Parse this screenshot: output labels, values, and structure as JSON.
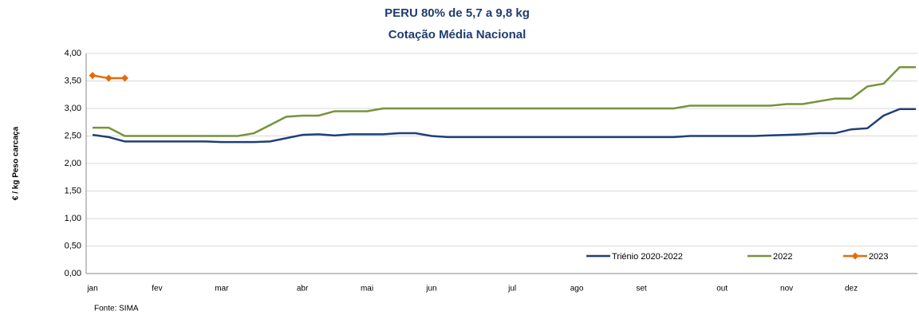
{
  "chart_data": {
    "type": "line",
    "title": "PERU 80% de 5,7 a 9,8 kg",
    "subtitle": "Cotação Média Nacional",
    "y_label": "€ / kg Peso carcaça",
    "source": "Fonte: SIMA",
    "categories": [
      "jan",
      null,
      null,
      null,
      "fev",
      null,
      null,
      null,
      "mar",
      null,
      null,
      null,
      null,
      "abr",
      null,
      null,
      null,
      "mai",
      null,
      null,
      null,
      "jun",
      null,
      null,
      null,
      null,
      "jul",
      null,
      null,
      null,
      "ago",
      null,
      null,
      null,
      "set",
      null,
      null,
      null,
      null,
      "out",
      null,
      null,
      null,
      "nov",
      null,
      null,
      null,
      "dez",
      null,
      null,
      null,
      null
    ],
    "series": [
      {
        "name": "Triénio 2020-2022",
        "color": "#203f77",
        "marker": false,
        "values": [
          2.52,
          2.48,
          2.4,
          2.4,
          2.4,
          2.4,
          2.4,
          2.4,
          2.39,
          2.39,
          2.39,
          2.4,
          2.46,
          2.52,
          2.53,
          2.51,
          2.53,
          2.53,
          2.53,
          2.55,
          2.55,
          2.5,
          2.48,
          2.48,
          2.48,
          2.48,
          2.48,
          2.48,
          2.48,
          2.48,
          2.48,
          2.48,
          2.48,
          2.48,
          2.48,
          2.48,
          2.48,
          2.5,
          2.5,
          2.5,
          2.5,
          2.5,
          2.51,
          2.52,
          2.53,
          2.55,
          2.55,
          2.62,
          2.64,
          2.87,
          2.99,
          2.99
        ]
      },
      {
        "name": "2022",
        "color": "#76933c",
        "marker": false,
        "values": [
          2.65,
          2.65,
          2.5,
          2.5,
          2.5,
          2.5,
          2.5,
          2.5,
          2.5,
          2.5,
          2.55,
          2.7,
          2.85,
          2.87,
          2.87,
          2.95,
          2.95,
          2.95,
          3.0,
          3.0,
          3.0,
          3.0,
          3.0,
          3.0,
          3.0,
          3.0,
          3.0,
          3.0,
          3.0,
          3.0,
          3.0,
          3.0,
          3.0,
          3.0,
          3.0,
          3.0,
          3.0,
          3.05,
          3.05,
          3.05,
          3.05,
          3.05,
          3.05,
          3.08,
          3.08,
          3.13,
          3.18,
          3.18,
          3.4,
          3.45,
          3.75,
          3.75
        ]
      },
      {
        "name": "2023",
        "color": "#e36c09",
        "marker": true,
        "values": [
          3.6,
          3.55,
          3.55,
          null,
          null,
          null,
          null,
          null,
          null,
          null,
          null,
          null,
          null,
          null,
          null,
          null,
          null,
          null,
          null,
          null,
          null,
          null,
          null,
          null,
          null,
          null,
          null,
          null,
          null,
          null,
          null,
          null,
          null,
          null,
          null,
          null,
          null,
          null,
          null,
          null,
          null,
          null,
          null,
          null,
          null,
          null,
          null,
          null,
          null,
          null,
          null,
          null
        ]
      }
    ],
    "ylim": [
      0,
      4
    ],
    "yticks": [
      {
        "value": 0,
        "label": "0,00"
      },
      {
        "value": 0.5,
        "label": "0,50"
      },
      {
        "value": 1,
        "label": "1,00"
      },
      {
        "value": 1.5,
        "label": "1,50"
      },
      {
        "value": 2,
        "label": "2,00"
      },
      {
        "value": 2.5,
        "label": "2,50"
      },
      {
        "value": 3,
        "label": "3,00"
      },
      {
        "value": 3.5,
        "label": "3,50"
      },
      {
        "value": 4,
        "label": "4,00"
      }
    ],
    "grid": true,
    "legend": "bottom-right"
  }
}
